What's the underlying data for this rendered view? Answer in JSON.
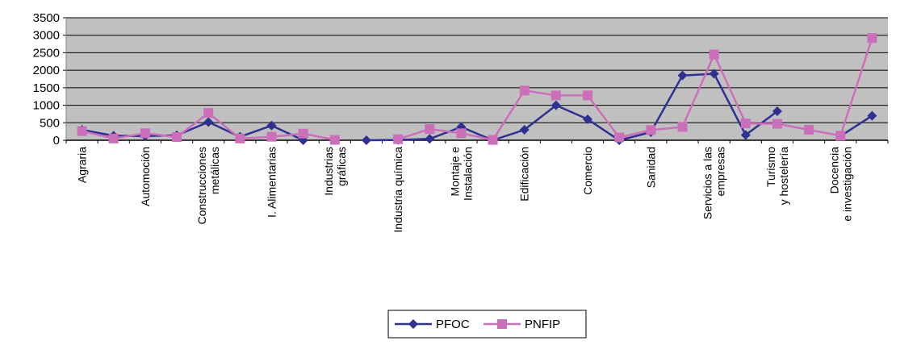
{
  "chart_data": {
    "type": "line",
    "ylim": [
      0,
      3500
    ],
    "yticks": [
      "0",
      "500",
      "1000",
      "1500",
      "2000",
      "2500",
      "3000",
      "3500"
    ],
    "grid": true,
    "legend_position": "bottom",
    "categories": [
      [
        "Agraria"
      ],
      [
        ""
      ],
      [
        "Automoción"
      ],
      [
        ""
      ],
      [
        "Construcciones",
        "metálicas"
      ],
      [
        ""
      ],
      [
        "I. Alimentarias"
      ],
      [
        ""
      ],
      [
        "Industrias",
        "gráficas"
      ],
      [
        ""
      ],
      [
        "Industria química"
      ],
      [
        ""
      ],
      [
        "Montaje e",
        "Instalación"
      ],
      [
        ""
      ],
      [
        "Edificación"
      ],
      [
        ""
      ],
      [
        "Comercio"
      ],
      [
        ""
      ],
      [
        "Sanidad"
      ],
      [
        ""
      ],
      [
        "Servicios a las",
        "empresas"
      ],
      [
        ""
      ],
      [
        "Turismo",
        "y hostelería"
      ],
      [
        ""
      ],
      [
        "Docencia",
        "e investigación"
      ],
      [
        ""
      ]
    ],
    "series": [
      {
        "name": "PFOC",
        "color": "#2e3192",
        "marker": "diamond",
        "values": [
          300,
          130,
          120,
          140,
          520,
          100,
          420,
          0,
          null,
          0,
          10,
          40,
          380,
          0,
          300,
          1000,
          600,
          0,
          230,
          1850,
          1900,
          150,
          830,
          null,
          120,
          700
        ]
      },
      {
        "name": "PNFIP",
        "color": "#cc6fbb",
        "marker": "square",
        "values": [
          260,
          50,
          200,
          90,
          780,
          50,
          100,
          190,
          10,
          null,
          30,
          320,
          200,
          10,
          1420,
          1280,
          1280,
          80,
          290,
          380,
          2450,
          480,
          470,
          300,
          130,
          2920
        ]
      }
    ]
  }
}
